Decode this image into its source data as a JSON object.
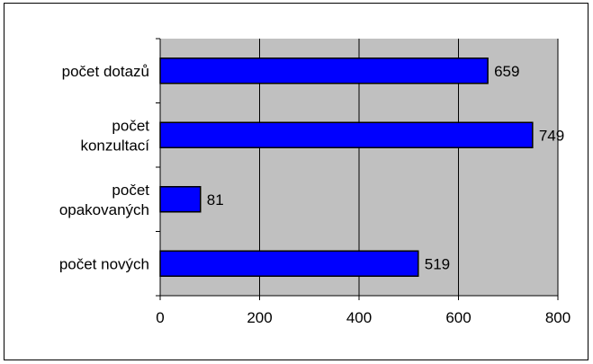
{
  "chart_data": {
    "type": "bar",
    "orientation": "horizontal",
    "categories": [
      [
        "počet dotazů"
      ],
      [
        "počet",
        "konzultací"
      ],
      [
        "počet",
        "opakovaných"
      ],
      [
        "počet nových"
      ]
    ],
    "values": [
      659,
      749,
      81,
      519
    ],
    "data_labels": [
      "659",
      "749",
      "81",
      "519"
    ],
    "x_ticks": [
      "0",
      "200",
      "400",
      "600",
      "800"
    ],
    "xlim": [
      0,
      800
    ],
    "title": "",
    "xlabel": "",
    "ylabel": "",
    "grid": "vertical",
    "legend": "none",
    "colors": {
      "bar_fill": "#0000ff",
      "bar_stroke": "#000000",
      "plot_background": "#c0c0c0",
      "gridline": "#000000"
    }
  }
}
